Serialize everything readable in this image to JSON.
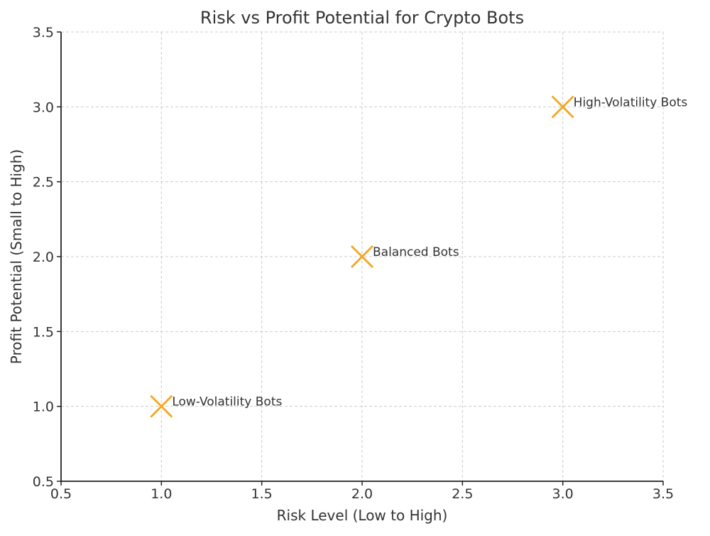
{
  "chart_data": {
    "type": "scatter",
    "title": "Risk vs Profit Potential for Crypto Bots",
    "xlabel": "Risk Level (Low to High)",
    "ylabel": "Profit Potential (Small to High)",
    "xlim": [
      0.5,
      3.5
    ],
    "ylim": [
      0.5,
      3.5
    ],
    "xticks": [
      "0.5",
      "1.0",
      "1.5",
      "2.0",
      "2.5",
      "3.0",
      "3.5"
    ],
    "yticks": [
      "0.5",
      "1.0",
      "1.5",
      "2.0",
      "2.5",
      "3.0",
      "3.5"
    ],
    "grid": true,
    "marker": "x",
    "marker_color": "#f5a623",
    "points": [
      {
        "x": 1,
        "y": 1,
        "label": "Low-Volatility Bots"
      },
      {
        "x": 2,
        "y": 2,
        "label": "Balanced Bots"
      },
      {
        "x": 3,
        "y": 3,
        "label": "High-Volatility Bots"
      }
    ]
  }
}
